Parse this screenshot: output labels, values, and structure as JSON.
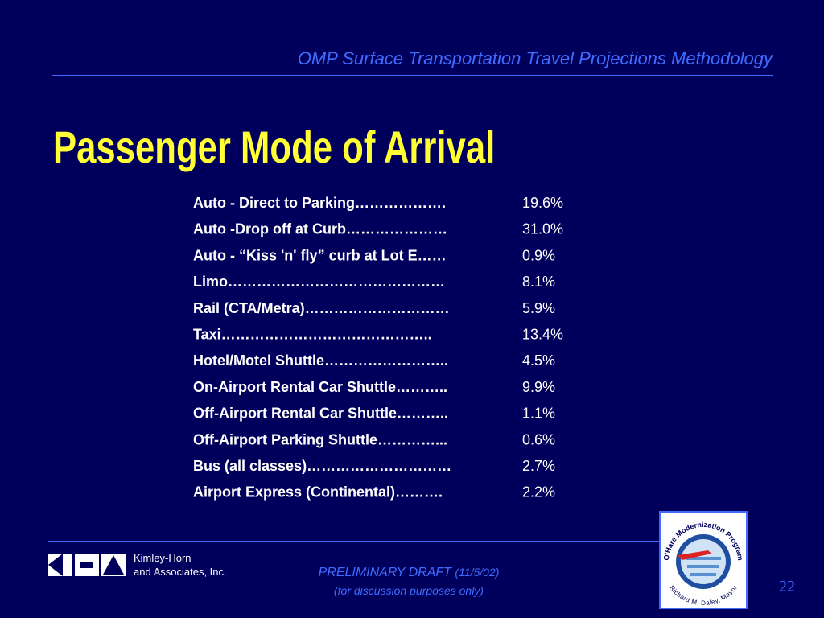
{
  "header": {
    "title": "OMP Surface Transportation Travel Projections Methodology"
  },
  "slide_title": "Passenger Mode of Arrival",
  "items": [
    {
      "label": "Auto - Direct to Parking……………….",
      "value": "19.6%"
    },
    {
      "label": "Auto -Drop off at Curb…………………",
      "value": "31.0%"
    },
    {
      "label": "Auto - “Kiss 'n' fly” curb at Lot E……",
      "value": "0.9%"
    },
    {
      "label": "Limo………………………………………",
      "value": "8.1%"
    },
    {
      "label": "Rail (CTA/Metra)…………………………",
      "value": "5.9%"
    },
    {
      "label": "Taxi……………………………………..",
      "value": "13.4%"
    },
    {
      "label": "Hotel/Motel Shuttle……………………..",
      "value": "4.5%"
    },
    {
      "label": "On-Airport Rental Car Shuttle………..",
      "value": "9.9%"
    },
    {
      "label": "Off-Airport Rental Car Shuttle………..",
      "value": "1.1%"
    },
    {
      "label": "Off-Airport Parking Shuttle…………...",
      "value": "0.6%"
    },
    {
      "label": "Bus (all classes)…………………………",
      "value": "2.7%"
    },
    {
      "label": "Airport Express (Continental)……….",
      "value": "2.2%"
    }
  ],
  "footer": {
    "company_line1": "Kimley-Horn",
    "company_line2": "and Associates, Inc.",
    "draft": "PRELIMINARY DRAFT",
    "draft_date": "(11/5/02)",
    "draft_note": "(for discussion purposes only)",
    "logo_top": "O'Hare Modernization Program",
    "logo_bottom": "Richard M. Daley, Mayor",
    "page_number": "22"
  }
}
